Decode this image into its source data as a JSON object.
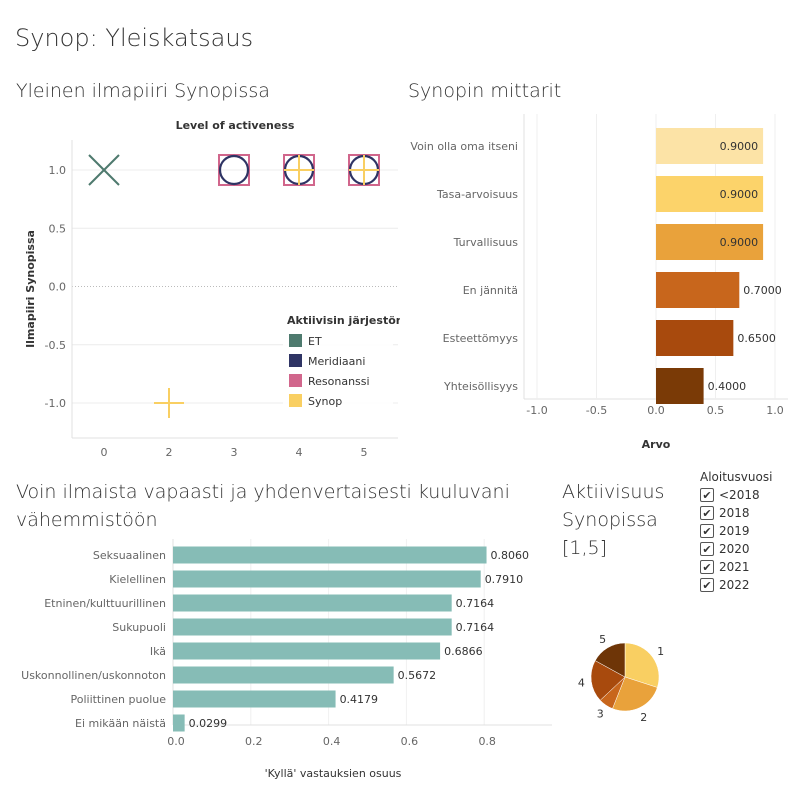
{
  "dashboard_title": "Synop: Yleiskatsaus",
  "sheets": {
    "climate_title": "Yleinen ilmapiiri Synopissa",
    "metrics_title": "Synopin mittarit",
    "minority_title_line1": "Voin ilmaista vapaasti ja yhdenvertaisesti kuuluvani",
    "minority_title_line2": "vähemmistöön",
    "activity_title_line1": "Aktiivisuus",
    "activity_title_line2": "Synopissa",
    "activity_title_line3": "[1,5]"
  },
  "filter": {
    "title": "Aloitusvuosi",
    "items": [
      {
        "label": "<2018",
        "checked": "✔"
      },
      {
        "label": "2018",
        "checked": "✔"
      },
      {
        "label": "2019",
        "checked": "✔"
      },
      {
        "label": "2020",
        "checked": "✔"
      },
      {
        "label": "2021",
        "checked": "✔"
      },
      {
        "label": "2022",
        "checked": "✔"
      }
    ]
  },
  "chart_data": [
    {
      "id": "climate",
      "type": "scatter",
      "title": "Level of activeness",
      "ylabel": "Ilmapiiri Synopissa",
      "xlabel": "",
      "x_ticks": [
        0,
        2,
        3,
        4,
        5
      ],
      "y_ticks": [
        "1.0",
        "0.5",
        "0.0",
        "-0.5",
        "-1.0"
      ],
      "ylim": [
        -1.25,
        1.25
      ],
      "legend_title": "Aktiivisin järjestöni",
      "legend": [
        {
          "name": "ET",
          "color": "#4e7a6e"
        },
        {
          "name": "Meridiaani",
          "color": "#2f3464"
        },
        {
          "name": "Resonanssi",
          "color": "#d1668c"
        },
        {
          "name": "Synop",
          "color": "#f9cf62"
        }
      ],
      "points": [
        {
          "x": 0,
          "y": 1.0,
          "series": "ET",
          "marker": "cross"
        },
        {
          "x": 2,
          "y": -1.0,
          "series": "Synop",
          "marker": "plus"
        },
        {
          "x": 3,
          "y": 1.0,
          "series": "Resonanssi",
          "marker": "square"
        },
        {
          "x": 3,
          "y": 1.0,
          "series": "Meridiaani",
          "marker": "circle"
        },
        {
          "x": 4,
          "y": 1.0,
          "series": "Resonanssi",
          "marker": "square"
        },
        {
          "x": 4,
          "y": 1.0,
          "series": "Meridiaani",
          "marker": "circle"
        },
        {
          "x": 4,
          "y": 1.0,
          "series": "Synop",
          "marker": "plus"
        },
        {
          "x": 5,
          "y": 1.0,
          "series": "Resonanssi",
          "marker": "square"
        },
        {
          "x": 5,
          "y": 1.0,
          "series": "Meridiaani",
          "marker": "circle"
        },
        {
          "x": 5,
          "y": 1.0,
          "series": "Synop",
          "marker": "plus"
        }
      ]
    },
    {
      "id": "metrics",
      "type": "bar",
      "orientation": "horizontal",
      "xlabel": "Arvo",
      "xlim": [
        -1.1,
        1.1
      ],
      "x_ticks": [
        "-1.0",
        "-0.5",
        "0.0",
        "0.5",
        "1.0"
      ],
      "x_tick_values": [
        -1.0,
        -0.5,
        0.0,
        0.5,
        1.0
      ],
      "categories": [
        "Voin olla oma itseni",
        "Tasa-arvoisuus",
        "Turvallisuus",
        "En jännitä",
        "Esteettömyys",
        "Yhteisöllisyys"
      ],
      "values": [
        0.9,
        0.9,
        0.9,
        0.7,
        0.65,
        0.4
      ],
      "labels": [
        "0.9000",
        "0.9000",
        "0.9000",
        "0.7000",
        "0.6500",
        "0.4000"
      ],
      "colors": [
        "#fce3a6",
        "#fcd36a",
        "#e9a23b",
        "#c8661c",
        "#a84a0d",
        "#7a3a06"
      ]
    },
    {
      "id": "minority",
      "type": "bar",
      "orientation": "horizontal",
      "xlabel": "'Kyllä' vastauksien osuus",
      "xlim": [
        0,
        0.95
      ],
      "x_ticks": [
        "0.0",
        "0.2",
        "0.4",
        "0.6",
        "0.8"
      ],
      "x_tick_values": [
        0.0,
        0.2,
        0.4,
        0.6,
        0.8
      ],
      "categories": [
        "Seksuaalinen",
        "Kielellinen",
        "Etninen/kulttuurillinen",
        "Sukupuoli",
        "Ikä",
        "Uskonnollinen/uskonnoton",
        "Poliittinen puolue",
        "Ei mikään näistä"
      ],
      "values": [
        0.806,
        0.791,
        0.7164,
        0.7164,
        0.6866,
        0.5672,
        0.4179,
        0.0299
      ],
      "labels": [
        "0.8060",
        "0.7910",
        "0.7164",
        "0.7164",
        "0.6866",
        "0.5672",
        "0.4179",
        "0.0299"
      ],
      "color": "#86bcb6"
    },
    {
      "id": "activity",
      "type": "pie",
      "slices": [
        {
          "label": "1",
          "value": 30,
          "color": "#f9cf62"
        },
        {
          "label": "2",
          "value": 26,
          "color": "#e9a23b"
        },
        {
          "label": "3",
          "value": 7,
          "color": "#c8661c"
        },
        {
          "label": "4",
          "value": 20,
          "color": "#a84a0d"
        },
        {
          "label": "5",
          "value": 17,
          "color": "#6e3507"
        }
      ]
    }
  ]
}
